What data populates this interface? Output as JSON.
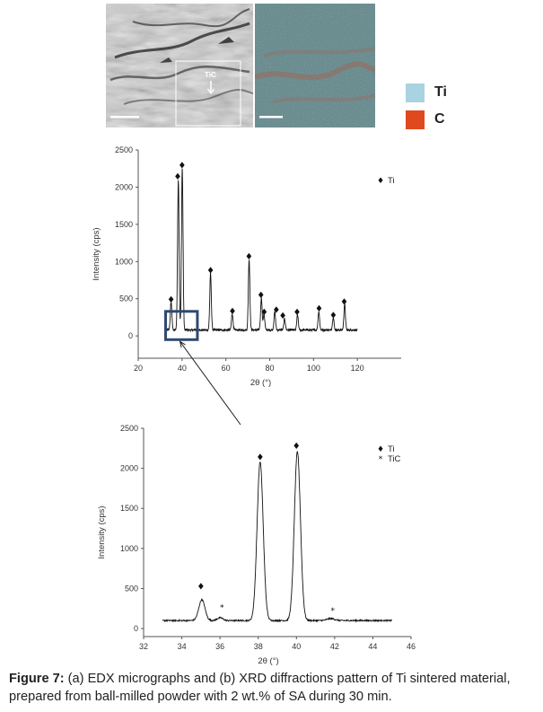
{
  "panel_a": {
    "sem_label": "TiC",
    "legend": [
      {
        "label": "Ti",
        "color": "#a9d3e1"
      },
      {
        "label": "C",
        "color": "#e0491e"
      }
    ]
  },
  "caption": {
    "figure_label": "Figure 7:",
    "text": " (a) EDX micrographs and (b) XRD diffractions pattern of Ti sintered material, prepared from ball-milled powder with 2 wt.% of SA during 30 min."
  },
  "chart_data": [
    {
      "type": "line",
      "xlabel": "2θ (°)",
      "ylabel": "Intensity (cps)",
      "xlim": [
        20,
        140
      ],
      "ylim": [
        -300,
        2500
      ],
      "xticks": [
        20,
        40,
        60,
        80,
        100,
        120
      ],
      "yticks": [
        0,
        500,
        1000,
        1500,
        2000,
        2500
      ],
      "grid": false,
      "legend": [
        {
          "marker": "♦",
          "label": "Ti"
        }
      ],
      "series": [
        {
          "name": "Ti",
          "x_range": [
            33,
            120
          ],
          "baseline": 80,
          "peaks": [
            {
              "x": 35.0,
              "y": 380
            },
            {
              "x": 38.3,
              "y": 2020
            },
            {
              "x": 40.1,
              "y": 2180
            },
            {
              "x": 53.0,
              "y": 760
            },
            {
              "x": 62.9,
              "y": 220
            },
            {
              "x": 70.6,
              "y": 950
            },
            {
              "x": 76.2,
              "y": 430
            },
            {
              "x": 77.4,
              "y": 210
            },
            {
              "x": 82.3,
              "y": 240
            },
            {
              "x": 86.8,
              "y": 150
            },
            {
              "x": 92.7,
              "y": 200
            },
            {
              "x": 102.4,
              "y": 250
            },
            {
              "x": 109.0,
              "y": 170
            },
            {
              "x": 114.2,
              "y": 350
            }
          ]
        }
      ],
      "markers": [
        {
          "x": 35.0,
          "y": 450,
          "symbol": "♦"
        },
        {
          "x": 38.0,
          "y": 2100,
          "symbol": "♦"
        },
        {
          "x": 40.0,
          "y": 2250,
          "symbol": "♦"
        },
        {
          "x": 53.0,
          "y": 840,
          "symbol": "♦"
        },
        {
          "x": 63.0,
          "y": 290,
          "symbol": "♦"
        },
        {
          "x": 70.5,
          "y": 1030,
          "symbol": "♦"
        },
        {
          "x": 76.0,
          "y": 510,
          "symbol": "♦"
        },
        {
          "x": 77.5,
          "y": 280,
          "symbol": "♦"
        },
        {
          "x": 83.0,
          "y": 310,
          "symbol": "♦"
        },
        {
          "x": 86.0,
          "y": 230,
          "symbol": "♦"
        },
        {
          "x": 92.5,
          "y": 280,
          "symbol": "♦"
        },
        {
          "x": 102.5,
          "y": 330,
          "symbol": "♦"
        },
        {
          "x": 109.0,
          "y": 240,
          "symbol": "♦"
        },
        {
          "x": 114.0,
          "y": 420,
          "symbol": "♦"
        }
      ],
      "zoom_box": {
        "x": [
          32.5,
          47
        ],
        "y": [
          -50,
          330
        ]
      }
    },
    {
      "type": "line",
      "xlabel": "2θ (°)",
      "ylabel": "Intensity (cps)",
      "xlim": [
        32,
        46
      ],
      "ylim": [
        -100,
        2500
      ],
      "xticks": [
        32,
        34,
        36,
        38,
        40,
        42,
        44,
        46
      ],
      "yticks": [
        0,
        500,
        1000,
        1500,
        2000,
        2500
      ],
      "grid": false,
      "legend": [
        {
          "marker": "♦",
          "label": "Ti"
        },
        {
          "marker": "*",
          "label": "TiC"
        }
      ],
      "series": [
        {
          "name": "Ti",
          "x_range": [
            33,
            45
          ],
          "baseline": 100,
          "peaks": [
            {
              "x": 35.05,
              "y": 260,
              "w": 0.16
            },
            {
              "x": 36.0,
              "y": 35,
              "w": 0.15
            },
            {
              "x": 38.1,
              "y": 1980,
              "w": 0.16
            },
            {
              "x": 40.05,
              "y": 2110,
              "w": 0.16
            },
            {
              "x": 41.8,
              "y": 25,
              "w": 0.2
            }
          ]
        }
      ],
      "markers": [
        {
          "x": 35.0,
          "y": 490,
          "symbol": "♦"
        },
        {
          "x": 38.1,
          "y": 2100,
          "symbol": "♦"
        },
        {
          "x": 40.0,
          "y": 2240,
          "symbol": "♦"
        },
        {
          "x": 36.1,
          "y": 230,
          "symbol": "*"
        },
        {
          "x": 41.9,
          "y": 190,
          "symbol": "*"
        }
      ]
    }
  ]
}
